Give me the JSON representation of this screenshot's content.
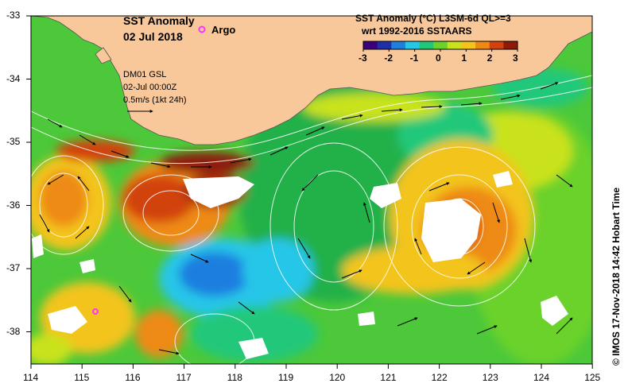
{
  "map": {
    "title": "SST Anomaly",
    "date": "02 Jul 2018",
    "argo_label": "Argo",
    "glider_label": "DM01 GSL",
    "glider_time": "02-Jul 00:00Z",
    "scale_label": "0.5m/s (1kt 24h)",
    "colorbar": {
      "title_line1": "SST Anomaly (°C) L3SM-6d QL>=3",
      "title_line2": "wrt 1992-2016 SSTAARS",
      "ticks": [
        "-3",
        "-2",
        "-1",
        "0",
        "1",
        "2",
        "3"
      ],
      "colors": [
        "#3b007a",
        "#1f2fa8",
        "#1f7fe0",
        "#26c6e8",
        "#22c87a",
        "#6ad22a",
        "#c9e21c",
        "#f3c41a",
        "#ee8a12",
        "#d2420e",
        "#8e1a08"
      ]
    },
    "y_axis": [
      "-33",
      "-34",
      "-35",
      "-36",
      "-37",
      "-38"
    ],
    "x_axis": [
      "114",
      "115",
      "116",
      "117",
      "118",
      "119",
      "120",
      "121",
      "122",
      "123",
      "124",
      "125"
    ],
    "credit": "© IMOS 17-Nov-2018 14:42 Hobart Time",
    "colors": {
      "land": "#f8c79a",
      "ocean_base": "#4cc83a",
      "argo_marker": "#ff33ff"
    }
  }
}
